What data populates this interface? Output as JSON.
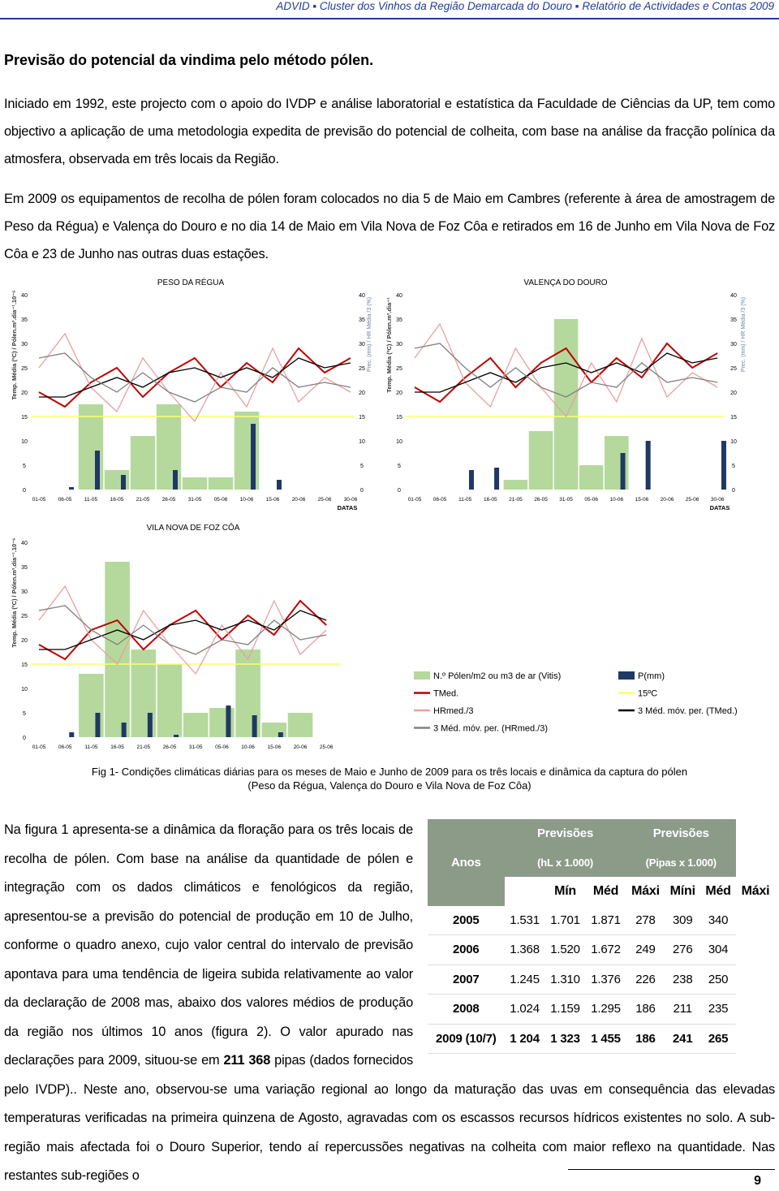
{
  "header": "ADVID ▪ Cluster dos Vinhos da Região Demarcada do Douro ▪ Relatório de Actividades e Contas 2009",
  "title": "Previsão do potencial da vindima pelo método pólen.",
  "paragraphs": [
    "Iniciado em 1992, este projecto com o apoio do IVDP e análise laboratorial e estatística da Faculdade de Ciências da UP, tem como objectivo a aplicação de uma metodologia expedita de previsão do potencial de colheita, com base na análise da fracção polínica da atmosfera, observada em três locais da Região.",
    "Em 2009 os equipamentos de recolha de pólen foram colocados no dia 5 de Maio em Cambres (referente à área de amostragem de Peso da Régua) e Valença do Douro e no dia 14 de Maio em Vila Nova de Foz Côa e retirados em 16 de Junho em Vila Nova de Foz Côa e 23 de Junho nas outras duas estações."
  ],
  "caption": [
    "Fig 1- Condições climáticas diárias para os meses de Maio e Junho de 2009 para os três locais e dinâmica da captura do pólen",
    "(Peso da Régua, Valença do Douro e Vila Nova de Foz Côa)"
  ],
  "closing": [
    "Na figura 1 apresenta-se a dinâmica da floração para os três locais de recolha de pólen. Com base na análise da quantidade de pólen e integração com os dados climáticos e fenológicos da região, apresentou-se a previsão do potencial de produção em 10 de Julho, conforme o quadro anexo, cujo valor central do intervalo de previsão apontava para uma tendência de ligeira subida relativamente ao valor da declaração de 2008 mas, abaixo dos valores médios de produção da região nos últimos 10 anos (figura 2). O valor apurado nas declarações para 2009, situou-se em ",
    "211 368",
    " pipas (dados fornecidos pelo IVDP).. Neste ano, observou-se uma variação regional ao longo da maturação das uvas em consequência das elevadas temperaturas verificadas na primeira quinzena de Agosto, agravadas com os escassos recursos hídricos existentes no solo. A sub-região mais afectada foi o Douro Superior, tendo aí repercussões negativas na colheita com maior reflexo na quantidade. Nas restantes sub-regiões o"
  ],
  "table": {
    "corner": "Anos",
    "groups": [
      {
        "title": "Previsões",
        "unit": "(hL x 1.000)"
      },
      {
        "title": "Previsões",
        "unit": "(Pipas x 1.000)"
      }
    ],
    "columns": [
      "Mín",
      "Méd",
      "Máxi",
      "Míni",
      "Méd",
      "Máxi"
    ],
    "rows": [
      [
        "2005",
        "1.531",
        "1.701",
        "1.871",
        "278",
        "309",
        "340"
      ],
      [
        "2006",
        "1.368",
        "1.520",
        "1.672",
        "249",
        "276",
        "304"
      ],
      [
        "2007",
        "1.245",
        "1.310",
        "1.376",
        "226",
        "238",
        "250"
      ],
      [
        "2008",
        "1.024",
        "1.159",
        "1.295",
        "186",
        "211",
        "235"
      ],
      [
        "2009 (10/7)",
        "1 204",
        "1 323",
        "1 455",
        "186",
        "241",
        "265"
      ]
    ]
  },
  "page_number": "9",
  "chart_data": [
    {
      "type": "combo",
      "title": "PESO DA RÉGUA",
      "ylabel": "Temp. Média (ºC) / Pólen.m³.dia⁻¹.10⁻⁶",
      "y2label": "Prec. (mm) / HR Média /3 (%)",
      "xlabel": "DATAS",
      "categories": [
        "01-05",
        "06-05",
        "11-05",
        "16-05",
        "21-05",
        "26-05",
        "31-05",
        "05-06",
        "10-06",
        "15-06",
        "20-06",
        "25-06",
        "30-06"
      ],
      "ylim": [
        0,
        40
      ],
      "yticks": [
        0,
        5,
        10,
        15,
        20,
        25,
        30,
        35,
        40
      ],
      "y2lim": [
        0,
        40
      ],
      "y2ticks": [
        0,
        5,
        10,
        15,
        20,
        25,
        30,
        35,
        40
      ],
      "reference": {
        "value": 15,
        "color": "#ffff66"
      },
      "series": [
        {
          "kind": "bar",
          "color": "#b5d99c",
          "values": [
            0,
            0,
            17.5,
            4,
            11,
            17.5,
            2.5,
            2.5,
            16,
            0,
            0,
            0,
            0
          ]
        },
        {
          "kind": "bar",
          "color": "#1f3864",
          "axis": "y2",
          "values": [
            0,
            0.5,
            8,
            3,
            0,
            4,
            0,
            0,
            13.5,
            2,
            0,
            0,
            0
          ]
        },
        {
          "kind": "line",
          "color": "#c00000",
          "values": [
            20,
            17,
            22,
            25,
            19,
            24,
            27,
            21,
            26,
            22,
            29,
            24,
            27
          ]
        },
        {
          "kind": "line",
          "color": "#e8a0a0",
          "axis": "y2",
          "values": [
            25,
            32,
            21,
            16,
            27,
            20,
            14,
            24,
            17,
            29,
            18,
            23,
            20
          ]
        },
        {
          "kind": "line",
          "color": "#000000",
          "values": [
            19,
            19,
            21,
            23,
            21,
            24,
            25,
            23,
            25,
            23,
            27,
            25,
            26
          ]
        },
        {
          "kind": "line",
          "color": "#808080",
          "axis": "y2",
          "values": [
            27,
            28,
            23,
            20,
            24,
            20,
            18,
            21,
            20,
            25,
            21,
            22,
            21
          ]
        }
      ]
    },
    {
      "type": "combo",
      "title": "VALENÇA DO DOURO",
      "ylabel": "Temp. Média (ºC) / Pólen.m³.dia⁻¹",
      "y2label": "Prec. (mm) / HR Média /3 (%)",
      "xlabel": "DATAS",
      "categories": [
        "01-05",
        "06-05",
        "11-05",
        "16-05",
        "21-05",
        "26-05",
        "31-05",
        "05-06",
        "10-06",
        "15-06",
        "20-06",
        "25-06",
        "30-06"
      ],
      "ylim": [
        0,
        40
      ],
      "yticks": [
        0,
        5,
        10,
        15,
        20,
        25,
        30,
        35,
        40
      ],
      "y2lim": [
        0,
        40
      ],
      "y2ticks": [
        0,
        5,
        10,
        15,
        20,
        25,
        30,
        35,
        40
      ],
      "reference": {
        "value": 15,
        "color": "#ffff66"
      },
      "series": [
        {
          "kind": "bar",
          "color": "#b5d99c",
          "values": [
            0,
            0,
            0,
            0,
            2,
            12,
            35,
            5,
            11,
            0,
            0,
            0,
            0
          ]
        },
        {
          "kind": "bar",
          "color": "#1f3864",
          "axis": "y2",
          "values": [
            0,
            0,
            4,
            4.5,
            0,
            0,
            0,
            0,
            7.5,
            10,
            0,
            0,
            10
          ]
        },
        {
          "kind": "line",
          "color": "#c00000",
          "values": [
            21,
            18,
            23,
            27,
            21,
            26,
            29,
            22,
            27,
            23,
            30,
            25,
            28
          ]
        },
        {
          "kind": "line",
          "color": "#e8a0a0",
          "axis": "y2",
          "values": [
            27,
            34,
            22,
            17,
            29,
            21,
            15,
            26,
            18,
            31,
            19,
            24,
            21
          ]
        },
        {
          "kind": "line",
          "color": "#000000",
          "values": [
            20,
            20,
            22,
            24,
            22,
            25,
            26,
            24,
            26,
            24,
            28,
            26,
            27
          ]
        },
        {
          "kind": "line",
          "color": "#808080",
          "axis": "y2",
          "values": [
            29,
            30,
            25,
            21,
            25,
            21,
            19,
            22,
            21,
            26,
            22,
            23,
            22
          ]
        }
      ]
    },
    {
      "type": "combo",
      "title": "VILA NOVA DE FOZ CÔA",
      "ylabel": "Temp. Média (ºC) / Pólen.m³.dia⁻¹.10⁻⁶",
      "categories": [
        "01-05",
        "06-05",
        "11-05",
        "16-05",
        "21-05",
        "26-05",
        "31-05",
        "05-06",
        "10-06",
        "15-06",
        "20-06",
        "25-06"
      ],
      "ylim": [
        0,
        40
      ],
      "yticks": [
        0,
        5,
        10,
        15,
        20,
        25,
        30,
        35,
        40
      ],
      "reference": {
        "name": "15ºC",
        "value": 15,
        "color": "#ffff66"
      },
      "series": [
        {
          "name": "N.º Pólen/m2 ou m3 de ar (Vitis)",
          "kind": "bar",
          "color": "#b5d99c",
          "values": [
            0,
            0,
            13,
            36,
            18,
            15,
            5,
            6,
            18,
            3,
            5,
            0
          ]
        },
        {
          "name": "P(mm)",
          "kind": "bar",
          "color": "#1f3864",
          "values": [
            0,
            1,
            5,
            3,
            5,
            0.5,
            0,
            6.5,
            4.5,
            1,
            0,
            0
          ]
        },
        {
          "name": "TMed.",
          "kind": "line",
          "color": "#c00000",
          "values": [
            19,
            16,
            22,
            24,
            18,
            23,
            26,
            20,
            25,
            21,
            28,
            23
          ]
        },
        {
          "name": "HRmed./3",
          "kind": "line",
          "color": "#e8a0a0",
          "values": [
            24,
            31,
            20,
            15,
            26,
            19,
            13,
            23,
            16,
            28,
            17,
            22
          ]
        },
        {
          "name": "3 Méd. móv. per. (TMed.)",
          "kind": "line",
          "color": "#000000",
          "values": [
            18,
            18,
            20,
            22,
            20,
            23,
            24,
            22,
            24,
            22,
            26,
            24
          ]
        },
        {
          "name": "3 Méd. móv. per. (HRmed./3)",
          "kind": "line",
          "color": "#808080",
          "values": [
            26,
            27,
            22,
            19,
            23,
            19,
            17,
            20,
            19,
            24,
            20,
            21
          ]
        }
      ]
    }
  ]
}
